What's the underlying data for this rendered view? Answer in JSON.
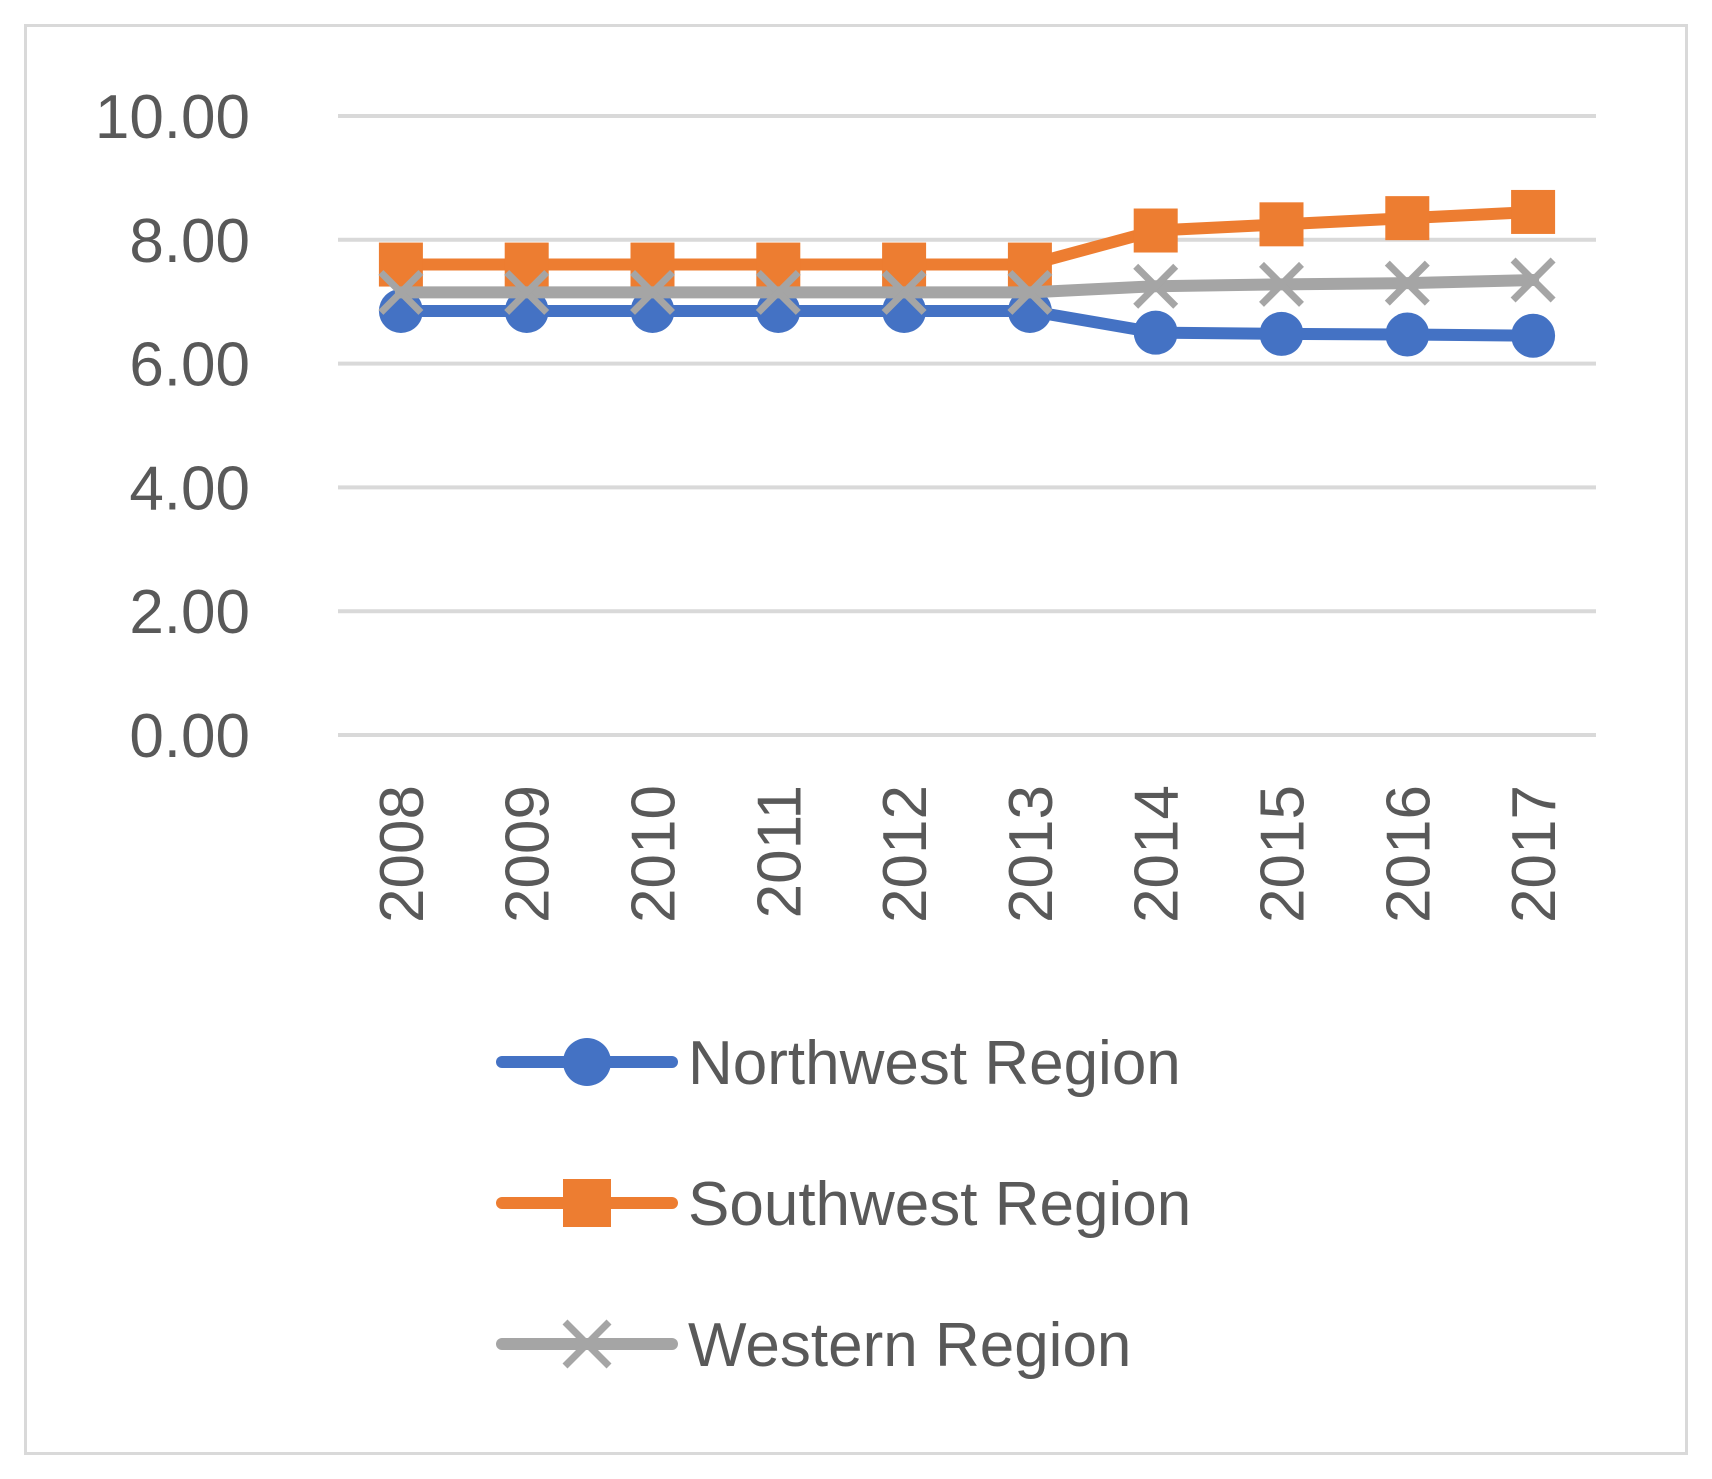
{
  "chart_data": {
    "type": "line",
    "title": "",
    "xlabel": "",
    "ylabel": "",
    "categories": [
      "2008",
      "2009",
      "2010",
      "2011",
      "2012",
      "2013",
      "2014",
      "2015",
      "2016",
      "2017"
    ],
    "ylim": [
      0,
      10
    ],
    "yticks": [
      "0.00",
      "2.00",
      "4.00",
      "6.00",
      "8.00",
      "10.00"
    ],
    "grid": true,
    "legend_position": "bottom",
    "series": [
      {
        "name": "Northwest Region",
        "color": "#4472c4",
        "marker": "circle",
        "values": [
          6.85,
          6.85,
          6.85,
          6.85,
          6.85,
          6.85,
          6.5,
          6.48,
          6.47,
          6.45
        ]
      },
      {
        "name": "Southwest Region",
        "color": "#ed7d31",
        "marker": "square",
        "values": [
          7.6,
          7.6,
          7.6,
          7.6,
          7.6,
          7.6,
          8.15,
          8.25,
          8.35,
          8.45
        ]
      },
      {
        "name": "Western Region",
        "color": "#a5a5a5",
        "marker": "x",
        "values": [
          7.15,
          7.15,
          7.15,
          7.15,
          7.15,
          7.15,
          7.25,
          7.28,
          7.3,
          7.35
        ]
      }
    ]
  }
}
